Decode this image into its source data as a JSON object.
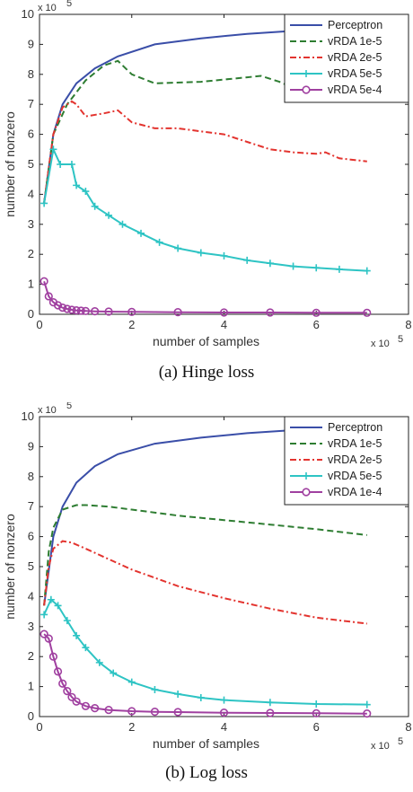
{
  "chart_data": [
    {
      "type": "line",
      "caption": "(a) Hinge loss",
      "xlabel": "number of samples",
      "ylabel": "number of nonzero",
      "x_multiplier": "x 10",
      "x_exponent": "5",
      "y_multiplier": "x 10",
      "y_exponent": "5",
      "xlim": [
        0,
        8
      ],
      "ylim": [
        0,
        10
      ],
      "xticks": [
        "0",
        "2",
        "4",
        "6",
        "8"
      ],
      "yticks": [
        "0",
        "1",
        "2",
        "3",
        "4",
        "5",
        "6",
        "7",
        "8",
        "9",
        "10"
      ],
      "legend_position": "top-right",
      "series": [
        {
          "name": "Perceptron",
          "color": "#3a4ea8",
          "style": "solid",
          "marker": "none",
          "x": [
            0.1,
            0.3,
            0.5,
            0.8,
            1.2,
            1.7,
            2.5,
            3.5,
            4.5,
            5.5,
            6.5,
            7.1
          ],
          "y": [
            3.7,
            6.0,
            7.0,
            7.7,
            8.2,
            8.6,
            9.0,
            9.2,
            9.35,
            9.45,
            9.5,
            9.55
          ]
        },
        {
          "name": "vRDA 1e-5",
          "color": "#2e7d32",
          "style": "dashed",
          "marker": "none",
          "x": [
            0.1,
            0.3,
            0.6,
            1.0,
            1.4,
            1.7,
            2.0,
            2.5,
            3.5,
            4.5,
            4.8,
            5.2,
            5.5
          ],
          "y": [
            3.7,
            6.0,
            7.0,
            7.8,
            8.3,
            8.45,
            8.0,
            7.7,
            7.75,
            7.9,
            7.95,
            7.75,
            7.55
          ]
        },
        {
          "name": "vRDA 2e-5",
          "color": "#e3342f",
          "style": "dashdot",
          "marker": "none",
          "x": [
            0.1,
            0.3,
            0.5,
            0.7,
            0.8,
            1.0,
            1.4,
            1.7,
            2.0,
            2.5,
            3.0,
            3.5,
            4.0,
            4.5,
            5.0,
            5.5,
            6.0,
            6.2,
            6.5,
            7.1
          ],
          "y": [
            3.7,
            6.0,
            6.9,
            7.1,
            7.0,
            6.6,
            6.7,
            6.8,
            6.4,
            6.2,
            6.2,
            6.1,
            6.0,
            5.75,
            5.5,
            5.4,
            5.35,
            5.4,
            5.2,
            5.1
          ]
        },
        {
          "name": "vRDA 5e-5",
          "color": "#2ec4c4",
          "style": "solid",
          "marker": "plus",
          "x": [
            0.1,
            0.3,
            0.45,
            0.7,
            0.8,
            1.0,
            1.2,
            1.5,
            1.8,
            2.2,
            2.6,
            3.0,
            3.5,
            4.0,
            4.5,
            5.0,
            5.5,
            6.0,
            6.5,
            7.1
          ],
          "y": [
            3.7,
            5.5,
            5.0,
            5.0,
            4.3,
            4.1,
            3.6,
            3.3,
            3.0,
            2.7,
            2.4,
            2.2,
            2.05,
            1.95,
            1.8,
            1.7,
            1.6,
            1.55,
            1.5,
            1.45
          ]
        },
        {
          "name": "vRDA 5e-4",
          "color": "#a040a0",
          "style": "solid",
          "marker": "circle",
          "x": [
            0.1,
            0.2,
            0.3,
            0.4,
            0.5,
            0.6,
            0.7,
            0.8,
            0.9,
            1.0,
            1.2,
            1.5,
            2.0,
            3.0,
            4.0,
            5.0,
            6.0,
            7.1
          ],
          "y": [
            1.1,
            0.6,
            0.4,
            0.3,
            0.22,
            0.18,
            0.15,
            0.13,
            0.12,
            0.11,
            0.1,
            0.09,
            0.08,
            0.07,
            0.06,
            0.06,
            0.05,
            0.05
          ]
        }
      ]
    },
    {
      "type": "line",
      "caption": "(b) Log loss",
      "xlabel": "number of samples",
      "ylabel": "number of nonzero",
      "x_multiplier": "x 10",
      "x_exponent": "5",
      "y_multiplier": "x 10",
      "y_exponent": "5",
      "xlim": [
        0,
        8
      ],
      "ylim": [
        0,
        10
      ],
      "xticks": [
        "0",
        "2",
        "4",
        "6",
        "8"
      ],
      "yticks": [
        "0",
        "1",
        "2",
        "3",
        "4",
        "5",
        "6",
        "7",
        "8",
        "9",
        "10"
      ],
      "legend_position": "top-right",
      "series": [
        {
          "name": "Perceptron",
          "color": "#3a4ea8",
          "style": "solid",
          "marker": "none",
          "x": [
            0.1,
            0.3,
            0.5,
            0.8,
            1.2,
            1.7,
            2.5,
            3.5,
            4.5,
            5.5,
            6.5,
            7.1
          ],
          "y": [
            3.7,
            6.0,
            7.0,
            7.8,
            8.35,
            8.75,
            9.1,
            9.3,
            9.45,
            9.55,
            9.6,
            9.65
          ]
        },
        {
          "name": "vRDA 1e-5",
          "color": "#2e7d32",
          "style": "dashed",
          "marker": "none",
          "x": [
            0.1,
            0.2,
            0.3,
            0.5,
            0.8,
            1.0,
            1.5,
            2.0,
            3.0,
            4.0,
            5.0,
            6.0,
            7.1
          ],
          "y": [
            3.7,
            5.5,
            6.3,
            6.9,
            7.05,
            7.05,
            7.0,
            6.9,
            6.7,
            6.55,
            6.4,
            6.25,
            6.05
          ]
        },
        {
          "name": "vRDA 2e-5",
          "color": "#e3342f",
          "style": "dashdot",
          "marker": "none",
          "x": [
            0.1,
            0.2,
            0.3,
            0.5,
            0.7,
            1.0,
            1.5,
            2.0,
            3.0,
            4.0,
            5.0,
            6.0,
            7.1
          ],
          "y": [
            3.7,
            5.0,
            5.6,
            5.85,
            5.8,
            5.6,
            5.25,
            4.9,
            4.35,
            3.95,
            3.6,
            3.3,
            3.1
          ]
        },
        {
          "name": "vRDA 5e-5",
          "color": "#2ec4c4",
          "style": "solid",
          "marker": "plus",
          "x": [
            0.1,
            0.25,
            0.4,
            0.6,
            0.8,
            1.0,
            1.3,
            1.6,
            2.0,
            2.5,
            3.0,
            3.5,
            4.0,
            5.0,
            6.0,
            7.1
          ],
          "y": [
            3.4,
            3.9,
            3.7,
            3.2,
            2.7,
            2.3,
            1.8,
            1.45,
            1.15,
            0.9,
            0.75,
            0.63,
            0.55,
            0.47,
            0.42,
            0.4
          ]
        },
        {
          "name": "vRDA 1e-4",
          "color": "#a040a0",
          "style": "solid",
          "marker": "circle",
          "x": [
            0.1,
            0.2,
            0.3,
            0.4,
            0.5,
            0.6,
            0.7,
            0.8,
            1.0,
            1.2,
            1.5,
            2.0,
            2.5,
            3.0,
            4.0,
            5.0,
            6.0,
            7.1
          ],
          "y": [
            2.75,
            2.6,
            2.0,
            1.5,
            1.1,
            0.85,
            0.65,
            0.5,
            0.35,
            0.28,
            0.22,
            0.18,
            0.16,
            0.15,
            0.13,
            0.12,
            0.11,
            0.1
          ]
        }
      ]
    }
  ]
}
